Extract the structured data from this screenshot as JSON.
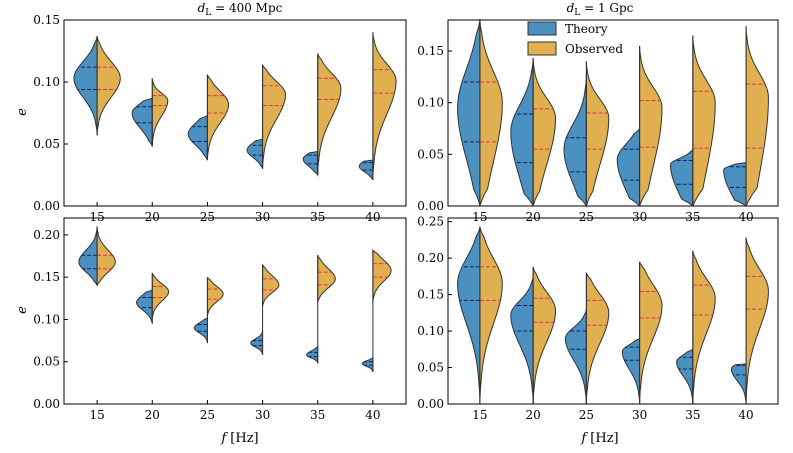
{
  "figure": {
    "title_left_prefix": "d",
    "title_left_sub": "L",
    "title_left_suffix": " = 400 Mpc",
    "title_right_prefix": "d",
    "title_right_sub": "L",
    "title_right_suffix": " = 1 Gpc",
    "xlabel_var": "f",
    "xlabel_unit": " [Hz]",
    "ylabel": "e",
    "colors": {
      "theory": "#4a90c0",
      "observed": "#e0b050",
      "edge": "#333333",
      "quartile_theory": "#1a1a60",
      "quartile_observed": "#e03050"
    },
    "legend": {
      "theory": "Theory",
      "observed": "Observed"
    }
  },
  "chart_data": [
    {
      "id": "top-left",
      "type": "split-violin",
      "title": "d_L = 400 Mpc",
      "categories": [
        "15",
        "20",
        "25",
        "30",
        "35",
        "40"
      ],
      "ylim": [
        0,
        0.15
      ],
      "yticks": [
        "0.00",
        "0.05",
        "0.10",
        "0.15"
      ],
      "ytick_values": [
        0,
        0.05,
        0.1,
        0.15
      ],
      "ylabel": "e",
      "theory": [
        {
          "mode": 0.103,
          "lo": 0.057,
          "hi": 0.137,
          "q1": 0.094,
          "q3": 0.112
        },
        {
          "mode": 0.075,
          "lo": 0.048,
          "hi": 0.087,
          "q1": 0.067,
          "q3": 0.08
        },
        {
          "mode": 0.058,
          "lo": 0.037,
          "hi": 0.073,
          "q1": 0.052,
          "q3": 0.064
        },
        {
          "mode": 0.045,
          "lo": 0.03,
          "hi": 0.054,
          "q1": 0.041,
          "q3": 0.049
        },
        {
          "mode": 0.038,
          "lo": 0.025,
          "hi": 0.044,
          "q1": 0.034,
          "q3": 0.041
        },
        {
          "mode": 0.032,
          "lo": 0.021,
          "hi": 0.037,
          "q1": 0.029,
          "q3": 0.035
        }
      ],
      "observed": [
        {
          "mode": 0.103,
          "lo": 0.057,
          "hi": 0.137,
          "q1": 0.094,
          "q3": 0.112
        },
        {
          "mode": 0.085,
          "lo": 0.048,
          "hi": 0.103,
          "q1": 0.081,
          "q3": 0.089
        },
        {
          "mode": 0.082,
          "lo": 0.037,
          "hi": 0.106,
          "q1": 0.075,
          "q3": 0.089
        },
        {
          "mode": 0.09,
          "lo": 0.03,
          "hi": 0.114,
          "q1": 0.081,
          "q3": 0.097
        },
        {
          "mode": 0.095,
          "lo": 0.025,
          "hi": 0.123,
          "q1": 0.086,
          "q3": 0.103
        },
        {
          "mode": 0.101,
          "lo": 0.021,
          "hi": 0.14,
          "q1": 0.091,
          "q3": 0.11
        }
      ]
    },
    {
      "id": "top-right",
      "type": "split-violin",
      "title": "d_L = 1 Gpc",
      "categories": [
        "15",
        "20",
        "25",
        "30",
        "35",
        "40"
      ],
      "ylim": [
        0,
        0.18
      ],
      "yticks": [
        "0.00",
        "0.05",
        "0.10",
        "0.15"
      ],
      "ytick_values": [
        0,
        0.05,
        0.1,
        0.15
      ],
      "theory": [
        {
          "mode": 0.095,
          "lo": 0.0,
          "hi": 0.181,
          "q1": 0.062,
          "q3": 0.12
        },
        {
          "mode": 0.072,
          "lo": 0.0,
          "hi": 0.143,
          "q1": 0.042,
          "q3": 0.089
        },
        {
          "mode": 0.055,
          "lo": 0.0,
          "hi": 0.127,
          "q1": 0.033,
          "q3": 0.066
        },
        {
          "mode": 0.045,
          "lo": 0.0,
          "hi": 0.075,
          "q1": 0.025,
          "q3": 0.055
        },
        {
          "mode": 0.04,
          "lo": 0.0,
          "hi": 0.055,
          "q1": 0.021,
          "q3": 0.044
        },
        {
          "mode": 0.035,
          "lo": 0.0,
          "hi": 0.042,
          "q1": 0.018,
          "q3": 0.038
        }
      ],
      "observed": [
        {
          "mode": 0.1,
          "lo": 0.0,
          "hi": 0.181,
          "q1": 0.062,
          "q3": 0.12
        },
        {
          "mode": 0.085,
          "lo": 0.0,
          "hi": 0.143,
          "q1": 0.055,
          "q3": 0.094
        },
        {
          "mode": 0.085,
          "lo": 0.0,
          "hi": 0.14,
          "q1": 0.055,
          "q3": 0.09
        },
        {
          "mode": 0.095,
          "lo": 0.0,
          "hi": 0.155,
          "q1": 0.057,
          "q3": 0.102
        },
        {
          "mode": 0.1,
          "lo": 0.0,
          "hi": 0.165,
          "q1": 0.056,
          "q3": 0.111
        },
        {
          "mode": 0.105,
          "lo": 0.0,
          "hi": 0.174,
          "q1": 0.056,
          "q3": 0.118
        }
      ]
    },
    {
      "id": "bottom-left",
      "type": "split-violin",
      "categories": [
        "15",
        "20",
        "25",
        "30",
        "35",
        "40"
      ],
      "ylim": [
        0,
        0.22
      ],
      "yticks": [
        "0.00",
        "0.05",
        "0.10",
        "0.15",
        "0.20"
      ],
      "ytick_values": [
        0,
        0.05,
        0.1,
        0.15,
        0.2
      ],
      "ylabel": "e",
      "xlabel": "f [Hz]",
      "theory": [
        {
          "mode": 0.168,
          "lo": 0.14,
          "hi": 0.21,
          "q1": 0.16,
          "q3": 0.176
        },
        {
          "mode": 0.12,
          "lo": 0.095,
          "hi": 0.135,
          "q1": 0.114,
          "q3": 0.126
        },
        {
          "mode": 0.09,
          "lo": 0.072,
          "hi": 0.102,
          "q1": 0.086,
          "q3": 0.094
        },
        {
          "mode": 0.072,
          "lo": 0.058,
          "hi": 0.087,
          "q1": 0.069,
          "q3": 0.075
        },
        {
          "mode": 0.058,
          "lo": 0.048,
          "hi": 0.068,
          "q1": 0.056,
          "q3": 0.061
        },
        {
          "mode": 0.048,
          "lo": 0.038,
          "hi": 0.055,
          "q1": 0.046,
          "q3": 0.05
        }
      ],
      "observed": [
        {
          "mode": 0.168,
          "lo": 0.14,
          "hi": 0.21,
          "q1": 0.16,
          "q3": 0.176
        },
        {
          "mode": 0.133,
          "lo": 0.1,
          "hi": 0.155,
          "q1": 0.126,
          "q3": 0.139
        },
        {
          "mode": 0.13,
          "lo": 0.103,
          "hi": 0.15,
          "q1": 0.124,
          "q3": 0.136
        },
        {
          "mode": 0.141,
          "lo": 0.115,
          "hi": 0.165,
          "q1": 0.135,
          "q3": 0.148
        },
        {
          "mode": 0.148,
          "lo": 0.12,
          "hi": 0.176,
          "q1": 0.141,
          "q3": 0.156
        },
        {
          "mode": 0.158,
          "lo": 0.12,
          "hi": 0.182,
          "q1": 0.15,
          "q3": 0.166
        }
      ]
    },
    {
      "id": "bottom-right",
      "type": "split-violin",
      "categories": [
        "15",
        "20",
        "25",
        "30",
        "35",
        "40"
      ],
      "ylim": [
        0,
        0.255
      ],
      "yticks": [
        "0.00",
        "0.05",
        "0.10",
        "0.15",
        "0.20",
        "0.25"
      ],
      "ytick_values": [
        0,
        0.05,
        0.1,
        0.15,
        0.2,
        0.25
      ],
      "xlabel": "f [Hz]",
      "theory": [
        {
          "mode": 0.165,
          "lo": 0.0,
          "hi": 0.243,
          "q1": 0.142,
          "q3": 0.188
        },
        {
          "mode": 0.122,
          "lo": 0.0,
          "hi": 0.175,
          "q1": 0.1,
          "q3": 0.135
        },
        {
          "mode": 0.09,
          "lo": 0.0,
          "hi": 0.13,
          "q1": 0.075,
          "q3": 0.1
        },
        {
          "mode": 0.072,
          "lo": 0.0,
          "hi": 0.09,
          "q1": 0.06,
          "q3": 0.078
        },
        {
          "mode": 0.058,
          "lo": 0.0,
          "hi": 0.075,
          "q1": 0.048,
          "q3": 0.064
        },
        {
          "mode": 0.048,
          "lo": 0.0,
          "hi": 0.055,
          "q1": 0.04,
          "q3": 0.053
        }
      ],
      "observed": [
        {
          "mode": 0.165,
          "lo": 0.0,
          "hi": 0.243,
          "q1": 0.142,
          "q3": 0.188
        },
        {
          "mode": 0.128,
          "lo": 0.0,
          "hi": 0.188,
          "q1": 0.112,
          "q3": 0.145
        },
        {
          "mode": 0.125,
          "lo": 0.0,
          "hi": 0.18,
          "q1": 0.108,
          "q3": 0.142
        },
        {
          "mode": 0.135,
          "lo": 0.0,
          "hi": 0.195,
          "q1": 0.118,
          "q3": 0.154
        },
        {
          "mode": 0.145,
          "lo": 0.0,
          "hi": 0.21,
          "q1": 0.122,
          "q3": 0.163
        },
        {
          "mode": 0.155,
          "lo": 0.0,
          "hi": 0.228,
          "q1": 0.13,
          "q3": 0.175
        }
      ]
    }
  ]
}
